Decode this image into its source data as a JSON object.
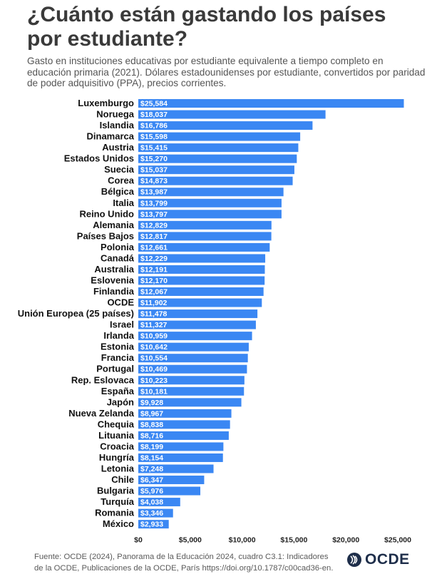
{
  "header": {
    "title": "¿Cuánto están gastando los países por estudiante?",
    "subtitle": "Gasto en instituciones educativas por estudiante equivalente a tiempo completo en educación primaria (2021). Dólares estadounidenses por estudiante, convertidos por paridad de poder adquisitivo (PPA), precios corrientes."
  },
  "footer": {
    "source": "Fuente: OCDE (2024), Panorama de la Educación 2024, cuadro C3.1: Indicadores de la OCDE, Publicaciones de la OCDE, París https://doi.org/10.1787/c00cad36-en.",
    "logo_text": "OCDE"
  },
  "colors": {
    "bar": "#3a87f3",
    "text": "#111111"
  },
  "chart_data": {
    "type": "bar",
    "orientation": "horizontal",
    "title": "¿Cuánto están gastando los países por estudiante?",
    "xlabel": "",
    "ylabel": "",
    "xlim": [
      0,
      25000
    ],
    "ticks": [
      0,
      5000,
      10000,
      15000,
      20000,
      25000
    ],
    "tick_labels": [
      "$0",
      "$5,000",
      "$10,000",
      "$15,000",
      "$20,000",
      "$25,000"
    ],
    "grid": false,
    "categories": [
      "Luxemburgo",
      "Noruega",
      "Islandia",
      "Dinamarca",
      "Austria",
      "Estados Unidos",
      "Suecia",
      "Corea",
      "Bélgica",
      "Italia",
      "Reino Unido",
      "Alemania",
      "Países Bajos",
      "Polonia",
      "Canadá",
      "Australia",
      "Eslovenia",
      "Finlandia",
      "OCDE",
      "Unión Europea (25 países)",
      "Israel",
      "Irlanda",
      "Estonia",
      "Francia",
      "Portugal",
      "Rep. Eslovaca",
      "España",
      "Japón",
      "Nueva Zelanda",
      "Chequia",
      "Lituania",
      "Croacia",
      "Hungría",
      "Letonia",
      "Chile",
      "Bulgaria",
      "Turquía",
      "Romania",
      "México"
    ],
    "values": [
      25584,
      18037,
      16786,
      15598,
      15415,
      15270,
      15037,
      14873,
      13987,
      13799,
      13797,
      12829,
      12817,
      12661,
      12229,
      12191,
      12170,
      12067,
      11902,
      11478,
      11327,
      10959,
      10642,
      10554,
      10469,
      10223,
      10181,
      9928,
      8967,
      8838,
      8716,
      8199,
      8154,
      7248,
      6347,
      5976,
      4038,
      3346,
      2933
    ],
    "value_labels": [
      "$25,584",
      "$18,037",
      "$16,786",
      "$15,598",
      "$15,415",
      "$15,270",
      "$15,037",
      "$14,873",
      "$13,987",
      "$13,799",
      "$13,797",
      "$12,829",
      "$12,817",
      "$12,661",
      "$12,229",
      "$12,191",
      "$12,170",
      "$12,067",
      "$11,902",
      "$11,478",
      "$11,327",
      "$10,959",
      "$10,642",
      "$10,554",
      "$10,469",
      "$10,223",
      "$10,181",
      "$9,928",
      "$8,967",
      "$8,838",
      "$8,716",
      "$8,199",
      "$8,154",
      "$7,248",
      "$6,347",
      "$5,976",
      "$4,038",
      "$3,346",
      "$2,933"
    ]
  }
}
